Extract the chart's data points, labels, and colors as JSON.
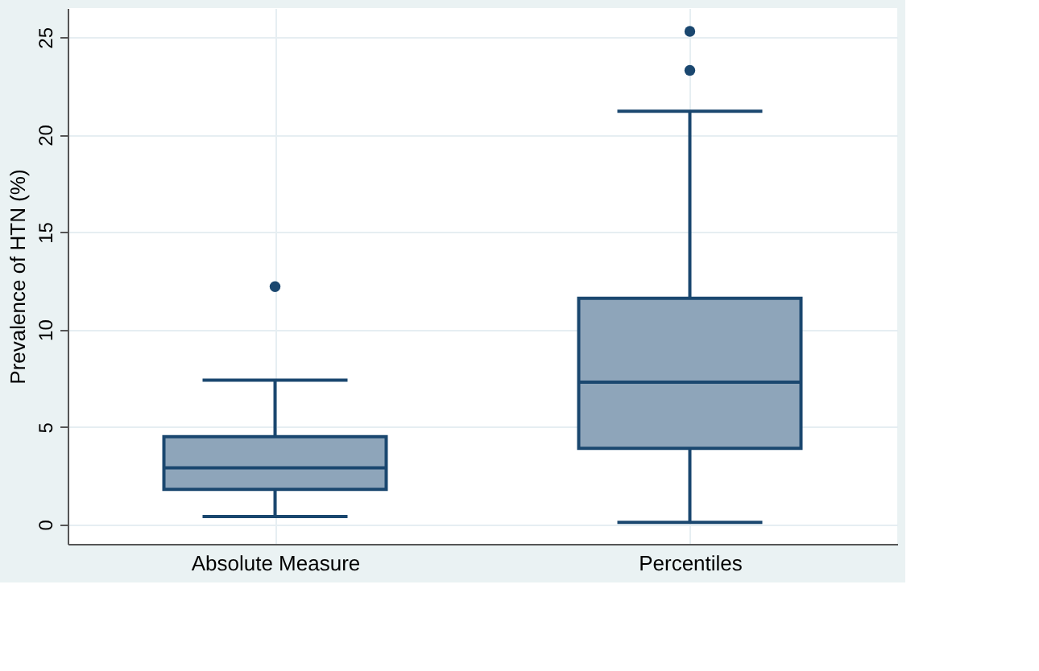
{
  "chart_data": {
    "type": "box",
    "ylabel": "Prevalence of HTN (%)",
    "categories": [
      "Absolute Measure",
      "Percentiles"
    ],
    "boxes": [
      {
        "low": 0.4,
        "q1": 1.8,
        "median": 2.9,
        "q3": 4.5,
        "high": 7.4,
        "outliers": [
          12.2
        ]
      },
      {
        "low": 0.1,
        "q1": 3.9,
        "median": 7.3,
        "q3": 11.6,
        "high": 21.2,
        "outliers": [
          23.3,
          25.3
        ]
      }
    ],
    "color": "#8ea5ba",
    "ylim": [
      -1,
      26.5
    ],
    "yticks": [
      0,
      5,
      10,
      15,
      20,
      25
    ],
    "grid": true
  }
}
